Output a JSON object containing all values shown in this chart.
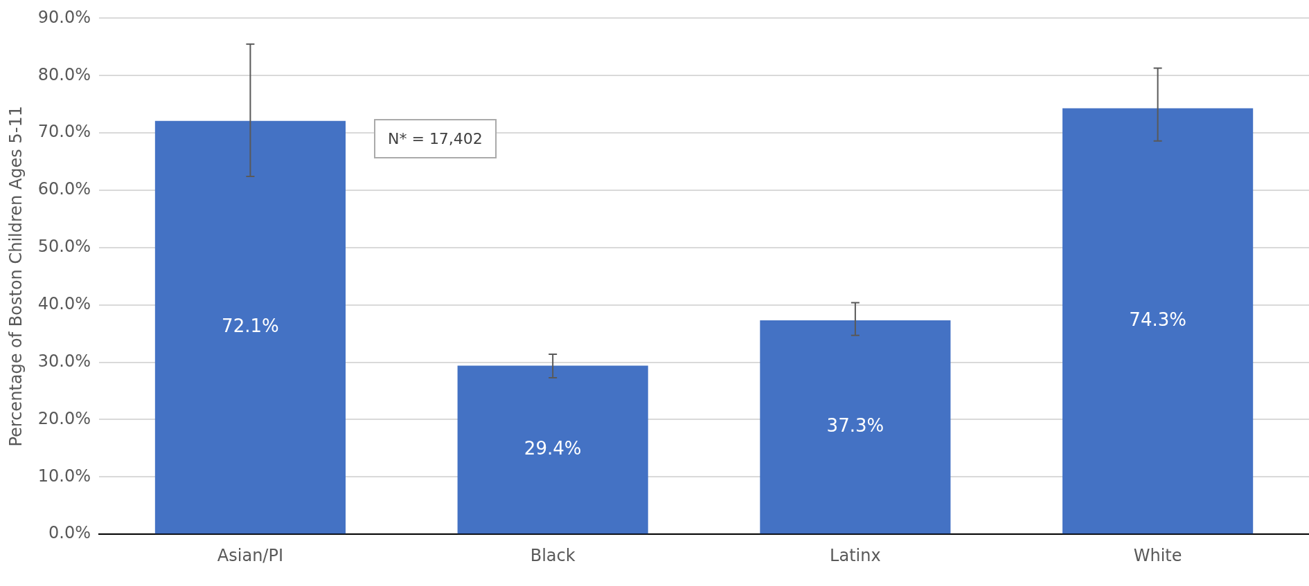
{
  "chart_data": {
    "type": "bar",
    "ylabel": "Percentage of Boston Children Ages 5-11",
    "categories": [
      "Asian/PI",
      "Black",
      "Latinx",
      "White"
    ],
    "values": [
      72.1,
      29.4,
      37.3,
      74.3
    ],
    "color": "#4472c4",
    "value_labels": [
      "72.1%",
      "29.4%",
      "37.3%",
      "74.3%"
    ],
    "errors": [
      [
        62.4,
        85.5
      ],
      [
        27.3,
        31.4
      ],
      [
        34.7,
        40.4
      ],
      [
        68.6,
        81.3
      ]
    ],
    "ylim": [
      0,
      90
    ],
    "yticks": [
      {
        "value": 0,
        "label": "0.0%"
      },
      {
        "value": 10,
        "label": "10.0%"
      },
      {
        "value": 20,
        "label": "20.0%"
      },
      {
        "value": 30,
        "label": "30.0%"
      },
      {
        "value": 40,
        "label": "40.0%"
      },
      {
        "value": 50,
        "label": "50.0%"
      },
      {
        "value": 60,
        "label": "60.0%"
      },
      {
        "value": 70,
        "label": "70.0%"
      },
      {
        "value": 80,
        "label": "80.0%"
      },
      {
        "value": 90,
        "label": "90.0%"
      }
    ],
    "grid": "y",
    "legend": false,
    "annotations": [
      "N* = 17,402"
    ]
  }
}
